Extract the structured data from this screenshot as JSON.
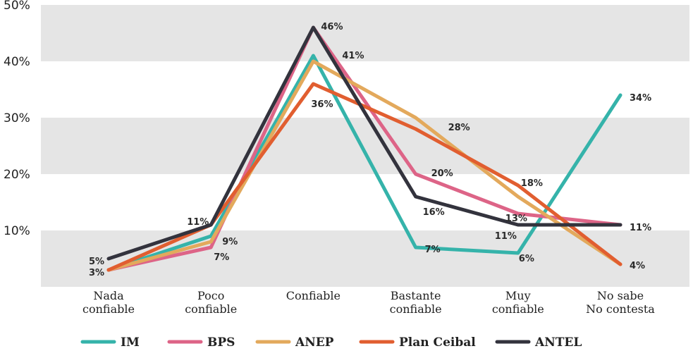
{
  "chart_data": {
    "type": "line",
    "title": "",
    "xlabel": "",
    "ylabel": "",
    "ylim": [
      0,
      50
    ],
    "y_ticks": [
      "10%",
      "20%",
      "30%",
      "40%",
      "50%"
    ],
    "categories": [
      [
        "Nada",
        "confiable"
      ],
      [
        "Poco",
        "confiable"
      ],
      [
        "Confiable"
      ],
      [
        "Bastante",
        "confiable"
      ],
      [
        "Muy",
        "confiable"
      ],
      [
        "No sabe",
        "No contesta"
      ]
    ],
    "legend_position": "bottom",
    "background": "alternating grey horizontal bands",
    "series": [
      {
        "name": "IM",
        "color": "#35b3aa",
        "values": [
          3,
          9,
          41,
          7,
          6,
          34
        ]
      },
      {
        "name": "BPS",
        "color": "#dd6487",
        "values": [
          3,
          7,
          46,
          20,
          13,
          11
        ]
      },
      {
        "name": "ANEP",
        "color": "#e3a95c",
        "values": [
          3,
          8,
          40,
          30,
          16,
          4
        ]
      },
      {
        "name": "Plan Ceibal",
        "color": "#e15e30",
        "values": [
          3,
          11,
          36,
          28,
          18,
          4
        ]
      },
      {
        "name": "ANTEL",
        "color": "#33333d",
        "values": [
          5,
          11,
          46,
          16,
          11,
          11
        ]
      }
    ],
    "data_labels": [
      {
        "text": "5%",
        "category": 0,
        "value": 5
      },
      {
        "text": "3%",
        "category": 0,
        "value": 3
      },
      {
        "text": "11%",
        "category": 1,
        "value": 11
      },
      {
        "text": "9%",
        "category": 1,
        "value": 9
      },
      {
        "text": "7%",
        "category": 1,
        "value": 7
      },
      {
        "text": "46%",
        "category": 2,
        "value": 46
      },
      {
        "text": "41%",
        "category": 2,
        "value": 41
      },
      {
        "text": "36%",
        "category": 2,
        "value": 36
      },
      {
        "text": "28%",
        "category": 3,
        "value": 28
      },
      {
        "text": "20%",
        "category": 3,
        "value": 20
      },
      {
        "text": "16%",
        "category": 3,
        "value": 16
      },
      {
        "text": "7%",
        "category": 3,
        "value": 7
      },
      {
        "text": "18%",
        "category": 4,
        "value": 18
      },
      {
        "text": "13%",
        "category": 4,
        "value": 13
      },
      {
        "text": "11%",
        "category": 4,
        "value": 11
      },
      {
        "text": "6%",
        "category": 4,
        "value": 6
      },
      {
        "text": "34%",
        "category": 5,
        "value": 34
      },
      {
        "text": "11%",
        "category": 5,
        "value": 11
      },
      {
        "text": "4%",
        "category": 5,
        "value": 4
      }
    ]
  }
}
